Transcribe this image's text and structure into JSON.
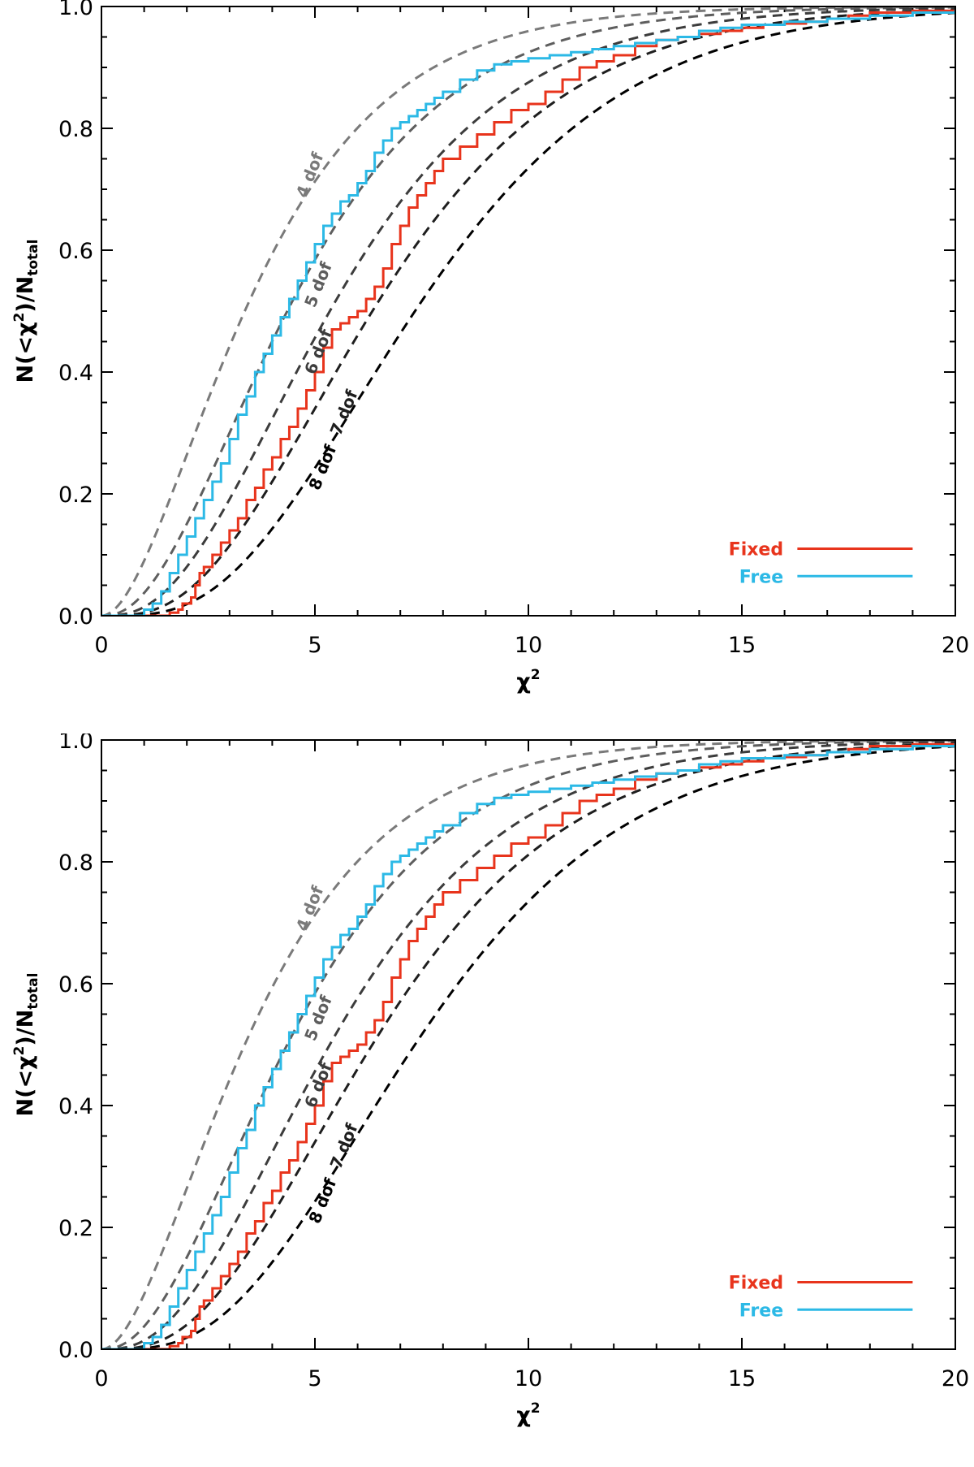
{
  "chart_data": [
    {
      "type": "line",
      "panel": "top",
      "xlabel": "χ",
      "xlabel_sup": "2",
      "ylabel_parts": [
        "N(<χ",
        "2",
        ")/N",
        "total"
      ],
      "xlim": [
        0,
        20
      ],
      "ylim": [
        0,
        1
      ],
      "xticks": [
        0,
        5,
        10,
        15,
        20
      ],
      "xtick_labels": [
        "0",
        "5",
        "10",
        "15",
        "20"
      ],
      "yticks": [
        0,
        0.2,
        0.4,
        0.6,
        0.8,
        1.0
      ],
      "ytick_labels": [
        "0.0",
        "0.2",
        "0.4",
        "0.6",
        "0.8",
        "1.0"
      ],
      "grid": false,
      "legend_position": "bottom-right",
      "reference_curves": [
        {
          "dof": 4,
          "label": "4 dof",
          "color": "#7a7a7a",
          "label_x": 5.0,
          "label_y": 0.72
        },
        {
          "dof": 5,
          "label": "5 dof",
          "color": "#5e5e5e",
          "label_x": 5.2,
          "label_y": 0.54
        },
        {
          "dof": 6,
          "label": "6 dof",
          "color": "#3c3c3c",
          "label_x": 5.2,
          "label_y": 0.43
        },
        {
          "dof": 7,
          "label": "7 dof",
          "color": "#1e1e1e",
          "label_x": 5.8,
          "label_y": 0.33
        },
        {
          "dof": 8,
          "label": "8 dof",
          "color": "#000000",
          "label_x": 5.3,
          "label_y": 0.24
        }
      ],
      "series": [
        {
          "name": "Fixed",
          "color": "#e8341c",
          "x": [
            0,
            1.55,
            1.6,
            1.8,
            1.9,
            2.1,
            2.2,
            2.3,
            2.4,
            2.6,
            2.8,
            3.0,
            3.2,
            3.4,
            3.6,
            3.8,
            4.0,
            4.2,
            4.4,
            4.6,
            4.8,
            5.0,
            5.2,
            5.4,
            5.6,
            5.8,
            6.0,
            6.2,
            6.4,
            6.6,
            6.8,
            7.0,
            7.2,
            7.4,
            7.6,
            7.8,
            8.0,
            8.4,
            8.8,
            9.2,
            9.6,
            10.0,
            10.4,
            10.8,
            11.2,
            11.6,
            12.0,
            12.5,
            13.0,
            13.5,
            14.0,
            14.5,
            15.0,
            15.5,
            16.0,
            16.5,
            17.0,
            17.5,
            18.0,
            19.0,
            20.0
          ],
          "y": [
            0,
            0,
            0.005,
            0.01,
            0.02,
            0.03,
            0.05,
            0.07,
            0.08,
            0.1,
            0.12,
            0.14,
            0.16,
            0.19,
            0.21,
            0.24,
            0.26,
            0.29,
            0.31,
            0.34,
            0.37,
            0.4,
            0.44,
            0.47,
            0.48,
            0.49,
            0.5,
            0.52,
            0.54,
            0.57,
            0.61,
            0.64,
            0.67,
            0.69,
            0.71,
            0.73,
            0.75,
            0.77,
            0.79,
            0.81,
            0.83,
            0.84,
            0.86,
            0.88,
            0.9,
            0.91,
            0.92,
            0.935,
            0.945,
            0.95,
            0.955,
            0.96,
            0.965,
            0.97,
            0.972,
            0.975,
            0.98,
            0.985,
            0.99,
            0.993,
            0.995
          ]
        },
        {
          "name": "Free",
          "color": "#2cb9e6",
          "x": [
            0,
            0.8,
            1.0,
            1.2,
            1.4,
            1.6,
            1.8,
            2.0,
            2.2,
            2.4,
            2.6,
            2.8,
            3.0,
            3.2,
            3.4,
            3.6,
            3.8,
            4.0,
            4.2,
            4.4,
            4.6,
            4.8,
            5.0,
            5.2,
            5.4,
            5.6,
            5.8,
            6.0,
            6.2,
            6.4,
            6.6,
            6.8,
            7.0,
            7.2,
            7.4,
            7.6,
            7.8,
            8.0,
            8.4,
            8.8,
            9.2,
            9.6,
            10.0,
            10.5,
            11.0,
            11.5,
            12.0,
            12.5,
            13.0,
            13.5,
            14.0,
            14.5,
            15.0,
            16.0,
            17.0,
            18.0,
            19.0,
            20.0
          ],
          "y": [
            0,
            0,
            0.01,
            0.02,
            0.04,
            0.07,
            0.1,
            0.13,
            0.16,
            0.19,
            0.22,
            0.25,
            0.29,
            0.33,
            0.36,
            0.4,
            0.43,
            0.46,
            0.49,
            0.52,
            0.55,
            0.58,
            0.61,
            0.64,
            0.66,
            0.68,
            0.69,
            0.71,
            0.73,
            0.76,
            0.78,
            0.8,
            0.81,
            0.82,
            0.83,
            0.84,
            0.85,
            0.86,
            0.88,
            0.895,
            0.905,
            0.91,
            0.915,
            0.92,
            0.925,
            0.93,
            0.935,
            0.94,
            0.945,
            0.95,
            0.96,
            0.965,
            0.97,
            0.975,
            0.98,
            0.985,
            0.99,
            0.995
          ]
        }
      ]
    },
    {
      "type": "line",
      "panel": "bottom",
      "xlabel": "χ",
      "xlabel_sup": "2",
      "ylabel_parts": [
        "N(<χ",
        "2",
        ")/N",
        "total"
      ],
      "xlim": [
        0,
        20
      ],
      "ylim": [
        0,
        1
      ],
      "xticks": [
        0,
        5,
        10,
        15,
        20
      ],
      "xtick_labels": [
        "0",
        "5",
        "10",
        "15",
        "20"
      ],
      "yticks": [
        0,
        0.2,
        0.4,
        0.6,
        0.8,
        1.0
      ],
      "ytick_labels": [
        "0.0",
        "0.2",
        "0.4",
        "0.6",
        "0.8",
        "1.0"
      ],
      "grid": false,
      "legend_position": "bottom-right",
      "reference_curves": [
        {
          "dof": 4,
          "label": "4 dof",
          "color": "#7a7a7a",
          "label_x": 5.0,
          "label_y": 0.72
        },
        {
          "dof": 5,
          "label": "5 dof",
          "color": "#5e5e5e",
          "label_x": 5.2,
          "label_y": 0.54
        },
        {
          "dof": 6,
          "label": "6 dof",
          "color": "#3c3c3c",
          "label_x": 5.2,
          "label_y": 0.43
        },
        {
          "dof": 7,
          "label": "7 dof",
          "color": "#1e1e1e",
          "label_x": 5.8,
          "label_y": 0.33
        },
        {
          "dof": 8,
          "label": "8 dof",
          "color": "#000000",
          "label_x": 5.3,
          "label_y": 0.24
        }
      ],
      "series": [
        {
          "name": "Fixed",
          "color": "#e8341c",
          "x": [
            0,
            1.55,
            1.6,
            1.8,
            1.9,
            2.1,
            2.2,
            2.3,
            2.4,
            2.6,
            2.8,
            3.0,
            3.2,
            3.4,
            3.6,
            3.8,
            4.0,
            4.2,
            4.4,
            4.6,
            4.8,
            5.0,
            5.2,
            5.4,
            5.6,
            5.8,
            6.0,
            6.2,
            6.4,
            6.6,
            6.8,
            7.0,
            7.2,
            7.4,
            7.6,
            7.8,
            8.0,
            8.4,
            8.8,
            9.2,
            9.6,
            10.0,
            10.4,
            10.8,
            11.2,
            11.6,
            12.0,
            12.5,
            13.0,
            13.5,
            14.0,
            14.5,
            15.0,
            15.5,
            16.0,
            16.5,
            17.0,
            17.5,
            18.0,
            19.0,
            20.0
          ],
          "y": [
            0,
            0,
            0.005,
            0.01,
            0.02,
            0.03,
            0.05,
            0.07,
            0.08,
            0.1,
            0.12,
            0.14,
            0.16,
            0.19,
            0.21,
            0.24,
            0.26,
            0.29,
            0.31,
            0.34,
            0.37,
            0.4,
            0.44,
            0.47,
            0.48,
            0.49,
            0.5,
            0.52,
            0.54,
            0.57,
            0.61,
            0.64,
            0.67,
            0.69,
            0.71,
            0.73,
            0.75,
            0.77,
            0.79,
            0.81,
            0.83,
            0.84,
            0.86,
            0.88,
            0.9,
            0.91,
            0.92,
            0.935,
            0.945,
            0.95,
            0.955,
            0.96,
            0.965,
            0.97,
            0.972,
            0.975,
            0.98,
            0.985,
            0.99,
            0.993,
            0.995
          ]
        },
        {
          "name": "Free",
          "color": "#2cb9e6",
          "x": [
            0,
            0.8,
            1.0,
            1.2,
            1.4,
            1.6,
            1.8,
            2.0,
            2.2,
            2.4,
            2.6,
            2.8,
            3.0,
            3.2,
            3.4,
            3.6,
            3.8,
            4.0,
            4.2,
            4.4,
            4.6,
            4.8,
            5.0,
            5.2,
            5.4,
            5.6,
            5.8,
            6.0,
            6.2,
            6.4,
            6.6,
            6.8,
            7.0,
            7.2,
            7.4,
            7.6,
            7.8,
            8.0,
            8.4,
            8.8,
            9.2,
            9.6,
            10.0,
            10.5,
            11.0,
            11.5,
            12.0,
            12.5,
            13.0,
            13.5,
            14.0,
            14.5,
            15.0,
            16.0,
            17.0,
            18.0,
            19.0,
            20.0
          ],
          "y": [
            0,
            0,
            0.01,
            0.02,
            0.04,
            0.07,
            0.1,
            0.13,
            0.16,
            0.19,
            0.22,
            0.25,
            0.29,
            0.33,
            0.36,
            0.4,
            0.43,
            0.46,
            0.49,
            0.52,
            0.55,
            0.58,
            0.61,
            0.64,
            0.66,
            0.68,
            0.69,
            0.71,
            0.73,
            0.76,
            0.78,
            0.8,
            0.81,
            0.82,
            0.83,
            0.84,
            0.85,
            0.86,
            0.88,
            0.895,
            0.905,
            0.91,
            0.915,
            0.92,
            0.925,
            0.93,
            0.935,
            0.94,
            0.945,
            0.95,
            0.96,
            0.965,
            0.97,
            0.975,
            0.98,
            0.985,
            0.99,
            0.995
          ]
        }
      ]
    }
  ]
}
